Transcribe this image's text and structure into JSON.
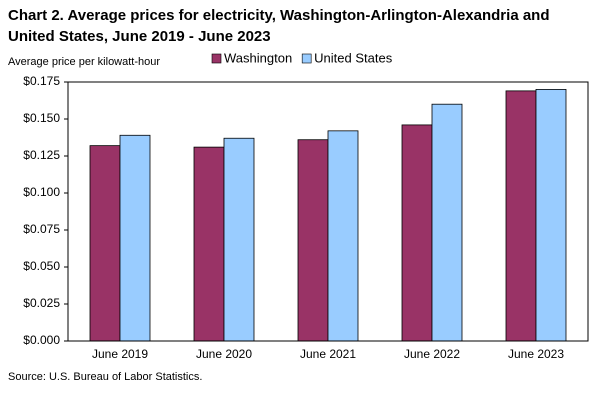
{
  "chart_data": {
    "type": "bar",
    "title": "Chart 2. Average prices for electricity, Washington-Arlington-Alexandria and United States, June 2019 - June 2023",
    "y_label": "Average price per kilowatt-hour",
    "source": "Source: U.S. Bureau of Labor Statistics.",
    "categories": [
      "June 2019",
      "June 2020",
      "June 2021",
      "June 2022",
      "June 2023"
    ],
    "series": [
      {
        "name": "Washington",
        "color": "#993366",
        "values": [
          0.132,
          0.131,
          0.136,
          0.146,
          0.169
        ]
      },
      {
        "name": "United States",
        "color": "#99ccff",
        "values": [
          0.139,
          0.137,
          0.142,
          0.16,
          0.17
        ]
      }
    ],
    "ylim": [
      0,
      0.175
    ],
    "yticks": [
      {
        "value": 0,
        "label": "$0.000"
      },
      {
        "value": 0.025,
        "label": "$0.025"
      },
      {
        "value": 0.05,
        "label": "$0.050"
      },
      {
        "value": 0.075,
        "label": "$0.075"
      },
      {
        "value": 0.1,
        "label": "$0.100"
      },
      {
        "value": 0.125,
        "label": "$0.125"
      },
      {
        "value": 0.15,
        "label": "$0.150"
      },
      {
        "value": 0.175,
        "label": "$0.175"
      }
    ],
    "grid": false
  }
}
